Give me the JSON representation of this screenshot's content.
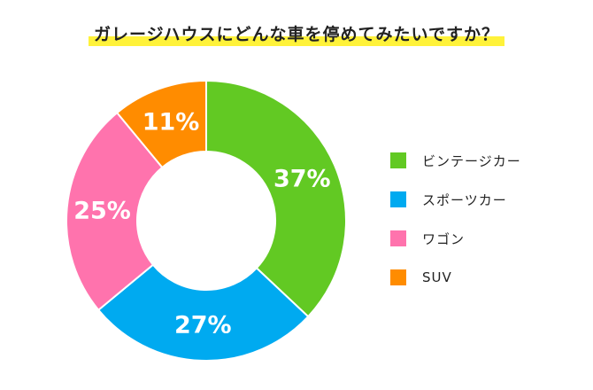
{
  "chart_data": {
    "type": "pie",
    "title": "ガレージハウスにどんな車を停めてみたいですか？",
    "legend_position": "right",
    "donut": true,
    "slices": [
      {
        "label": "ビンテージカー",
        "value": 37,
        "display": "37%",
        "color": "#62c923"
      },
      {
        "label": "スポーツカー",
        "value": 27,
        "display": "27%",
        "color": "#00aaf0"
      },
      {
        "label": "ワゴン",
        "value": 25,
        "display": "25%",
        "color": "#ff73ad"
      },
      {
        "label": "SUV",
        "value": 11,
        "display": "11%",
        "color": "#ff8c00"
      }
    ]
  }
}
